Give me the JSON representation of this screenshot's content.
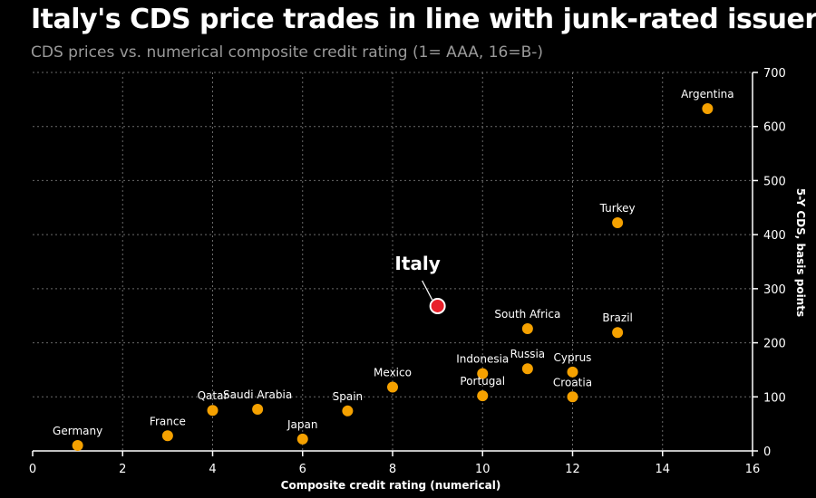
{
  "title": "Italy's CDS price trades in line with junk-rated issuers",
  "subtitle": "CDS prices vs. numerical composite credit rating (1= AAA, 16=B-)",
  "colors": {
    "background": "#000000",
    "point": "#f5a100",
    "highlight": "#e8202a",
    "grid": "#6a6a6a",
    "subtitle": "#9a9a9a"
  },
  "chart_data": {
    "type": "scatter",
    "xlabel": "Composite credit rating (numerical)",
    "ylabel": "5-Y CDS, basis points",
    "xlim": [
      0,
      16
    ],
    "ylim": [
      0,
      700
    ],
    "x_ticks": [
      0,
      2,
      4,
      6,
      8,
      10,
      12,
      14,
      16
    ],
    "y_ticks": [
      0,
      100,
      200,
      300,
      400,
      500,
      600,
      700
    ],
    "y_axis_position": "right",
    "grid": true,
    "points": [
      {
        "label": "Germany",
        "x": 1,
        "y": 10
      },
      {
        "label": "France",
        "x": 3,
        "y": 28
      },
      {
        "label": "Qatar",
        "x": 4,
        "y": 75
      },
      {
        "label": "Saudi Arabia",
        "x": 5,
        "y": 77
      },
      {
        "label": "Japan",
        "x": 6,
        "y": 22
      },
      {
        "label": "Spain",
        "x": 7,
        "y": 74
      },
      {
        "label": "Mexico",
        "x": 8,
        "y": 118
      },
      {
        "label": "Italy",
        "x": 9,
        "y": 268,
        "highlight": true
      },
      {
        "label": "Indonesia",
        "x": 10,
        "y": 143
      },
      {
        "label": "Portugal",
        "x": 10,
        "y": 102
      },
      {
        "label": "South Africa",
        "x": 11,
        "y": 226
      },
      {
        "label": "Russia",
        "x": 11,
        "y": 152
      },
      {
        "label": "Cyprus",
        "x": 12,
        "y": 146
      },
      {
        "label": "Croatia",
        "x": 12,
        "y": 100
      },
      {
        "label": "Turkey",
        "x": 13,
        "y": 422
      },
      {
        "label": "Brazil",
        "x": 13,
        "y": 219
      },
      {
        "label": "Argentina",
        "x": 15,
        "y": 633
      }
    ]
  }
}
